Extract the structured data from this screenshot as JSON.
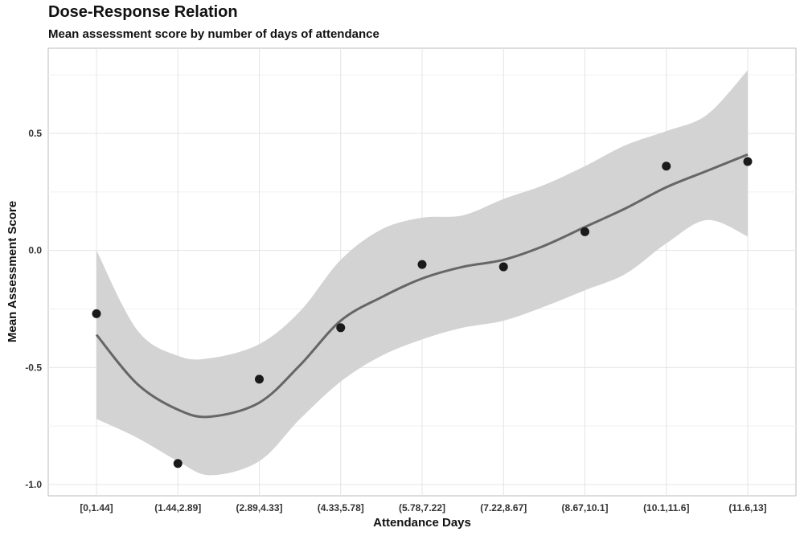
{
  "chart_data": {
    "type": "scatter",
    "title": "Dose-Response Relation",
    "subtitle": "Mean assessment score by number of days of attendance",
    "xlabel": "Attendance Days",
    "ylabel": "Mean Assessment Score",
    "categories": [
      "[0,1.44]",
      "(1.44,2.89]",
      "(2.89,4.33]",
      "(4.33,5.78]",
      "(5.78,7.22]",
      "(7.22,8.67]",
      "(8.67,10.1]",
      "(10.1,11.6]",
      "(11.6,13]"
    ],
    "points": [
      -0.27,
      -0.91,
      -0.55,
      -0.33,
      -0.06,
      -0.07,
      0.08,
      0.36,
      0.38
    ],
    "smooth": {
      "positions": [
        1,
        1.5,
        2,
        2.4,
        3,
        3.5,
        4,
        4.5,
        5,
        5.5,
        6,
        6.5,
        7,
        7.5,
        8,
        8.5,
        9
      ],
      "fit": [
        -0.36,
        -0.57,
        -0.68,
        -0.71,
        -0.65,
        -0.49,
        -0.3,
        -0.2,
        -0.12,
        -0.07,
        -0.04,
        0.02,
        0.1,
        0.18,
        0.27,
        0.34,
        0.41
      ],
      "lower": [
        -0.72,
        -0.8,
        -0.9,
        -0.96,
        -0.9,
        -0.72,
        -0.56,
        -0.45,
        -0.38,
        -0.33,
        -0.3,
        -0.24,
        -0.17,
        -0.1,
        0.03,
        0.13,
        0.06
      ],
      "upper": [
        0.0,
        -0.34,
        -0.45,
        -0.46,
        -0.4,
        -0.26,
        -0.04,
        0.09,
        0.14,
        0.15,
        0.22,
        0.28,
        0.36,
        0.45,
        0.51,
        0.58,
        0.77
      ]
    },
    "yticks": [
      -1.0,
      -0.5,
      0.0,
      0.5
    ],
    "ytick_labels": [
      "-1.0",
      "-0.5",
      "0.0",
      "0.5"
    ],
    "ylim": [
      -1.02,
      0.78
    ],
    "grid": true,
    "colors": {
      "point": "#1a1a1a",
      "line": "#666666",
      "ribbon": "#d3d3d3",
      "grid": "#e4e4e4",
      "panel_border": "#bbbbbb"
    }
  }
}
